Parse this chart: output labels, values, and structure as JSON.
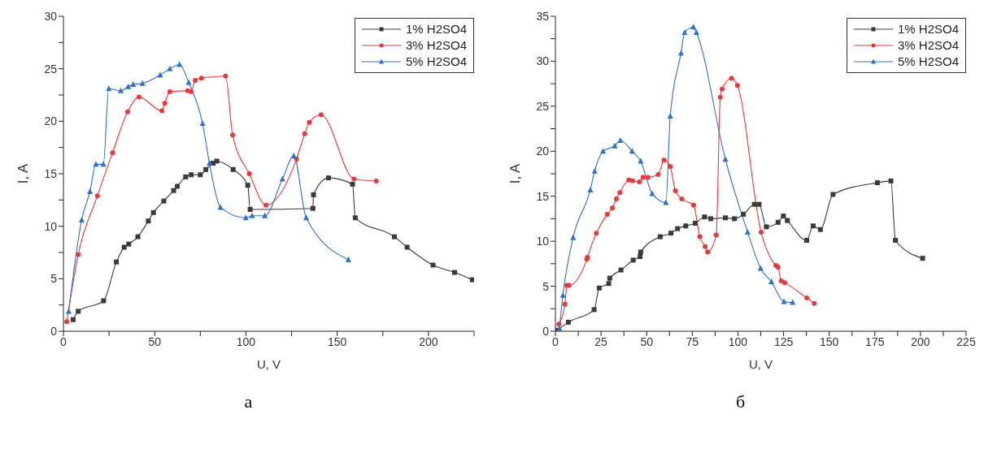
{
  "chart_data": [
    {
      "type": "line",
      "xlabel": "U, V",
      "ylabel": "I, A",
      "annotations": [
        "а"
      ],
      "legend": "top right",
      "line_style": "solid",
      "xlim": [
        0,
        225
      ],
      "xticks": [
        0,
        {
          "value": 25,
          "label": null
        },
        50,
        {
          "value": 75,
          "label": null
        },
        100,
        {
          "value": 125,
          "label": null
        },
        150,
        {
          "value": 175,
          "label": null
        },
        200,
        {
          "value": 225,
          "label": null
        }
      ],
      "ylim": [
        0,
        30
      ],
      "yticks": [
        0,
        {
          "value": 2.5,
          "label": null
        },
        5,
        {
          "value": 7.5,
          "label": null
        },
        10,
        {
          "value": 12.5,
          "label": null
        },
        15,
        {
          "value": 17.5,
          "label": null
        },
        20,
        {
          "value": 22.5,
          "label": null
        },
        25,
        {
          "value": 27.5,
          "label": null
        },
        30
      ],
      "series": [
        {
          "name": "1% H2SO4",
          "color": "#3a3a3a",
          "marker": "square",
          "x": [
            5.3,
            8.1,
            22,
            29,
            33.3,
            35.8,
            40.8,
            46.5,
            49.3,
            55,
            60.4,
            62.4,
            67,
            70,
            75,
            78,
            82,
            84,
            93,
            101,
            102.3,
            136.7,
            137,
            145.2,
            158.4,
            159.9,
            181.3,
            188.3,
            202.5,
            214.3,
            224
          ],
          "values": [
            1.1,
            1.9,
            2.9,
            6.6,
            8.0,
            8.3,
            9.0,
            10.5,
            11.3,
            12.4,
            13.4,
            13.8,
            14.7,
            14.9,
            14.9,
            15.4,
            16.0,
            16.2,
            15.4,
            13.9,
            11.6,
            11.7,
            13.0,
            14.6,
            14.0,
            10.8,
            9.0,
            8.0,
            6.3,
            5.6,
            4.9
          ]
        },
        {
          "name": "3% H2SO4",
          "color": "#e8383a",
          "marker": "circle",
          "x": [
            1.8,
            8.1,
            18.6,
            26.9,
            35.2,
            41.4,
            53.9,
            55.5,
            58.3,
            68.1,
            70,
            72.2,
            75.6,
            88.8,
            92.7,
            101.8,
            111,
            127.7,
            132.2,
            134.7,
            141.2,
            159.2,
            171.4
          ],
          "values": [
            0.9,
            7.3,
            12.9,
            17.0,
            20.9,
            22.3,
            21.0,
            21.7,
            22.8,
            22.9,
            22.8,
            23.9,
            24.1,
            24.3,
            18.7,
            15.0,
            12.0,
            16.4,
            18.8,
            19.9,
            20.6,
            14.5,
            14.3
          ]
        },
        {
          "name": "5% H2SO4",
          "color": "#2f6fd0",
          "marker": "triangle",
          "x": [
            2.9,
            10,
            14.5,
            17.8,
            21.9,
            24.8,
            31.4,
            35.5,
            38.2,
            43.3,
            53,
            58.3,
            63.6,
            68.6,
            76.2,
            80,
            86,
            99.9,
            103.4,
            110.3,
            120,
            126.2,
            133,
            156.1
          ],
          "values": [
            1.9,
            10.6,
            13.3,
            15.9,
            15.9,
            23.1,
            22.9,
            23.3,
            23.5,
            23.6,
            24.4,
            25.0,
            25.4,
            23.7,
            19.8,
            16.0,
            11.8,
            10.8,
            11.0,
            11.0,
            14.5,
            16.7,
            10.8,
            6.8
          ]
        }
      ]
    },
    {
      "type": "line",
      "xlabel": "U, V",
      "ylabel": "I, A",
      "annotations": [
        "б"
      ],
      "legend": "top right",
      "line_style": "solid",
      "xlim": [
        0,
        225
      ],
      "xticks": [
        0,
        {
          "value": 12.5,
          "label": null
        },
        25,
        {
          "value": 37.5,
          "label": null
        },
        50,
        {
          "value": 62.5,
          "label": null
        },
        75,
        {
          "value": 87.5,
          "label": null
        },
        100,
        {
          "value": 112.5,
          "label": null
        },
        125,
        {
          "value": 137.5,
          "label": null
        },
        150,
        {
          "value": 162.5,
          "label": null
        },
        175,
        {
          "value": 187.5,
          "label": null
        },
        200,
        {
          "value": 212.5,
          "label": null
        },
        225
      ],
      "ylim": [
        0,
        35
      ],
      "yticks": [
        0,
        {
          "value": 2.5,
          "label": null
        },
        5,
        {
          "value": 7.5,
          "label": null
        },
        10,
        {
          "value": 12.5,
          "label": null
        },
        15,
        {
          "value": 17.5,
          "label": null
        },
        20,
        {
          "value": 22.5,
          "label": null
        },
        25,
        {
          "value": 27.5,
          "label": null
        },
        30,
        {
          "value": 32.5,
          "label": null
        },
        35
      ],
      "series": [
        {
          "name": "1% H2SO4",
          "color": "#3a3a3a",
          "marker": "square",
          "x": [
            1,
            7.1,
            21.2,
            24,
            29.2,
            29.8,
            35.9,
            42.6,
            46.4,
            46.7,
            57.4,
            63.3,
            66.9,
            71.4,
            76.6,
            81.7,
            85.1,
            93.1,
            98.1,
            103,
            109,
            111.6,
            115.6,
            122,
            124.9,
            127.1,
            137.7,
            141.2,
            145.2,
            152.1,
            176.4,
            183.8,
            186.3,
            201.2
          ],
          "values": [
            0.1,
            1.0,
            2.4,
            4.8,
            5.3,
            5.9,
            6.8,
            7.9,
            8.3,
            8.8,
            10.5,
            10.9,
            11.4,
            11.7,
            12.0,
            12.7,
            12.5,
            12.6,
            12.5,
            13.0,
            14.1,
            14.1,
            11.6,
            12.1,
            12.8,
            12.3,
            10.1,
            11.7,
            11.3,
            15.2,
            16.5,
            16.7,
            10.1,
            8.1
          ]
        },
        {
          "name": "3% H2SO4",
          "color": "#e8383a",
          "marker": "circle",
          "x": [
            1.9,
            5.2,
            6.3,
            7.4,
            17.2,
            17.5,
            22.4,
            28.4,
            31.2,
            33.4,
            35.3,
            40.2,
            42.3,
            46,
            48,
            50.7,
            56.3,
            59.5,
            62.9,
            65.7,
            69.2,
            75.7,
            79.1,
            82,
            83.4,
            88.1,
            90.3,
            91.3,
            96.5,
            99.7,
            112.7,
            120.8,
            122,
            123.7,
            125.6,
            137.7,
            141.8
          ],
          "values": [
            0.8,
            3.0,
            5.1,
            5.1,
            8.0,
            8.2,
            10.9,
            13.0,
            13.7,
            14.7,
            15.4,
            16.8,
            16.7,
            16.6,
            17.1,
            17.1,
            17.4,
            19.0,
            18.3,
            15.6,
            14.7,
            14.0,
            10.5,
            9.4,
            8.8,
            10.7,
            26.0,
            26.9,
            28.1,
            27.3,
            11.0,
            7.3,
            7.1,
            5.6,
            5.4,
            3.7,
            3.1
          ]
        },
        {
          "name": "5% H2SO4",
          "color": "#2f6fd0",
          "marker": "triangle",
          "x": [
            2.2,
            4.1,
            9.7,
            19.1,
            21.5,
            26.1,
            32.5,
            35.6,
            42,
            46.7,
            53,
            60.5,
            62.9,
            68.8,
            70.8,
            75.6,
            77.2,
            93.1,
            105.3,
            112.4,
            118.3,
            125.2,
            130
          ],
          "values": [
            0.3,
            4.0,
            10.4,
            15.7,
            17.8,
            20.0,
            20.6,
            21.2,
            20.0,
            18.9,
            15.3,
            14.3,
            23.9,
            30.9,
            33.2,
            33.8,
            33.2,
            19.1,
            11.0,
            7.0,
            5.5,
            3.3,
            3.2
          ]
        }
      ]
    }
  ]
}
